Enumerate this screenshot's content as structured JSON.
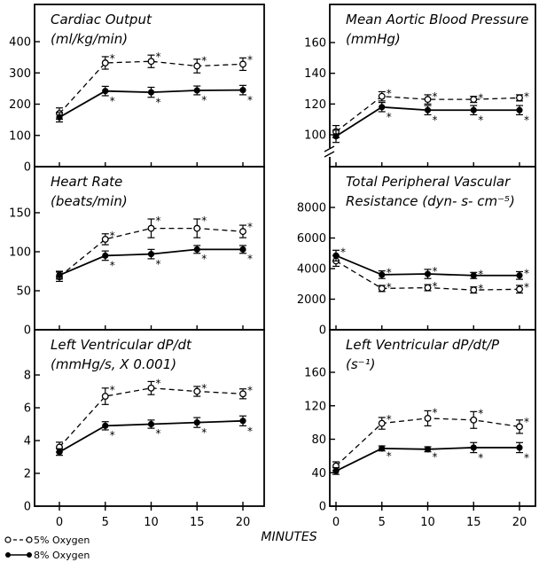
{
  "chart_data": [
    {
      "type": "line",
      "title_lines": [
        "Cardiac Output",
        "(ml/kg/min)"
      ],
      "x": [
        0,
        5,
        10,
        15,
        20
      ],
      "xticks": [
        "0",
        "5",
        "10",
        "15",
        "20"
      ],
      "ylim": [
        0,
        450
      ],
      "yticks": [
        "0",
        "100",
        "200",
        "300",
        "400"
      ],
      "ytick_values": [
        0,
        100,
        200,
        300,
        400
      ],
      "axis_break": false,
      "series": [
        {
          "name": "5% Oxygen",
          "values": [
            170,
            332,
            337,
            322,
            328
          ],
          "err": [
            18,
            20,
            20,
            22,
            20
          ],
          "sig": [
            false,
            true,
            true,
            true,
            true
          ],
          "marker": "open",
          "dash": true
        },
        {
          "name": "8% Oxygen",
          "values": [
            158,
            242,
            238,
            244,
            245
          ],
          "err": [
            15,
            15,
            16,
            14,
            15
          ],
          "sig": [
            false,
            true,
            true,
            true,
            true
          ],
          "marker": "filled",
          "dash": false
        }
      ]
    },
    {
      "type": "line",
      "title_lines": [
        "Mean Aortic Blood Pressure",
        "(mmHg)"
      ],
      "x": [
        0,
        5,
        10,
        15,
        20
      ],
      "xticks": [
        "0",
        "5",
        "10",
        "15",
        "20"
      ],
      "ylim": [
        90,
        170
      ],
      "yticks": [
        "100",
        "120",
        "140",
        "160"
      ],
      "ytick_values": [
        100,
        120,
        140,
        160
      ],
      "axis_break": true,
      "series": [
        {
          "name": "5% Oxygen",
          "values": [
            102,
            125,
            123,
            123,
            124
          ],
          "err": [
            4,
            3,
            3,
            2,
            2
          ],
          "sig": [
            false,
            true,
            true,
            true,
            true
          ],
          "marker": "open",
          "dash": true
        },
        {
          "name": "8% Oxygen",
          "values": [
            99,
            118,
            116,
            116,
            116
          ],
          "err": [
            4,
            3,
            3,
            3,
            3
          ],
          "sig": [
            false,
            true,
            true,
            true,
            true
          ],
          "marker": "filled",
          "dash": false
        }
      ]
    },
    {
      "type": "line",
      "title_lines": [
        "Heart Rate",
        "(beats/min)"
      ],
      "x": [
        0,
        5,
        10,
        15,
        20
      ],
      "xticks": [
        "0",
        "5",
        "10",
        "15",
        "20"
      ],
      "ylim": [
        0,
        180
      ],
      "yticks": [
        "0",
        "50",
        "100",
        "150"
      ],
      "ytick_values": [
        0,
        50,
        100,
        150
      ],
      "axis_break": false,
      "series": [
        {
          "name": "5% Oxygen",
          "values": [
            68,
            116,
            130,
            130,
            126
          ],
          "err": [
            6,
            7,
            12,
            12,
            8
          ],
          "sig": [
            false,
            true,
            true,
            true,
            true
          ],
          "marker": "open",
          "dash": true
        },
        {
          "name": "8% Oxygen",
          "values": [
            70,
            95,
            97,
            103,
            103
          ],
          "err": [
            5,
            6,
            6,
            5,
            5
          ],
          "sig": [
            false,
            true,
            true,
            true,
            true
          ],
          "marker": "filled",
          "dash": false
        }
      ]
    },
    {
      "type": "line",
      "title_lines": [
        "Total Peripheral Vascular",
        "Resistance (dyn- s- cm⁻⁵)"
      ],
      "x": [
        0,
        5,
        10,
        15,
        20
      ],
      "xticks": [
        "0",
        "5",
        "10",
        "15",
        "20"
      ],
      "ylim": [
        0,
        10000
      ],
      "yticks": [
        "0",
        "2000",
        "4000",
        "6000",
        "8000"
      ],
      "ytick_values": [
        0,
        2000,
        4000,
        6000,
        8000
      ],
      "axis_break": false,
      "series": [
        {
          "name": "5% Oxygen",
          "values": [
            4500,
            2700,
            2750,
            2600,
            2650
          ],
          "err": [
            350,
            200,
            200,
            200,
            250
          ],
          "sig": [
            false,
            true,
            true,
            true,
            true
          ],
          "marker": "open",
          "dash": true
        },
        {
          "name": "8% Oxygen",
          "values": [
            4850,
            3600,
            3650,
            3550,
            3550
          ],
          "err": [
            350,
            250,
            300,
            200,
            250
          ],
          "sig": [
            true,
            true,
            true,
            true,
            true
          ],
          "marker": "filled",
          "dash": false
        }
      ]
    },
    {
      "type": "line",
      "title_lines": [
        "Left Ventricular dP/dt",
        "(mmHg/s, X 0.001)"
      ],
      "x": [
        0,
        5,
        10,
        15,
        20
      ],
      "xticks": [
        "0",
        "5",
        "10",
        "15",
        "20"
      ],
      "ylim": [
        0,
        9.2
      ],
      "yticks": [
        "0",
        "2",
        "4",
        "6",
        "8"
      ],
      "ytick_values": [
        0,
        2,
        4,
        6,
        8
      ],
      "axis_break": false,
      "series": [
        {
          "name": "5% Oxygen",
          "values": [
            3.6,
            6.7,
            7.2,
            7.0,
            6.85
          ],
          "err": [
            0.3,
            0.5,
            0.4,
            0.3,
            0.3
          ],
          "sig": [
            false,
            true,
            true,
            true,
            true
          ],
          "marker": "open",
          "dash": true
        },
        {
          "name": "8% Oxygen",
          "values": [
            3.3,
            4.9,
            5.0,
            5.1,
            5.2
          ],
          "err": [
            0.2,
            0.25,
            0.25,
            0.3,
            0.3
          ],
          "sig": [
            false,
            true,
            true,
            true,
            true
          ],
          "marker": "filled",
          "dash": false
        }
      ]
    },
    {
      "type": "line",
      "title_lines": [
        "Left Ventricular dP/dt/P",
        "(s⁻¹)"
      ],
      "x": [
        0,
        5,
        10,
        15,
        20
      ],
      "xticks": [
        "0",
        "5",
        "10",
        "15",
        "20"
      ],
      "ylim": [
        0,
        185
      ],
      "yticks": [
        "0",
        "40",
        "80",
        "120",
        "160"
      ],
      "ytick_values": [
        0,
        40,
        80,
        120,
        160
      ],
      "axis_break": false,
      "series": [
        {
          "name": "5% Oxygen",
          "values": [
            48,
            99,
            105,
            103,
            95
          ],
          "err": [
            5,
            7,
            9,
            10,
            8
          ],
          "sig": [
            false,
            true,
            true,
            true,
            true
          ],
          "marker": "open",
          "dash": true
        },
        {
          "name": "8% Oxygen",
          "values": [
            42,
            69,
            68,
            70,
            70
          ],
          "err": [
            4,
            3,
            3,
            6,
            6
          ],
          "sig": [
            false,
            true,
            true,
            true,
            true
          ],
          "marker": "filled",
          "dash": false
        }
      ]
    }
  ],
  "xlabel": "MINUTES",
  "legend": {
    "items": [
      {
        "label": "5% Oxygen",
        "marker": "open"
      },
      {
        "label": "8% Oxygen",
        "marker": "filled"
      }
    ],
    "placement": "bottom-left"
  },
  "significance_mark": "*"
}
